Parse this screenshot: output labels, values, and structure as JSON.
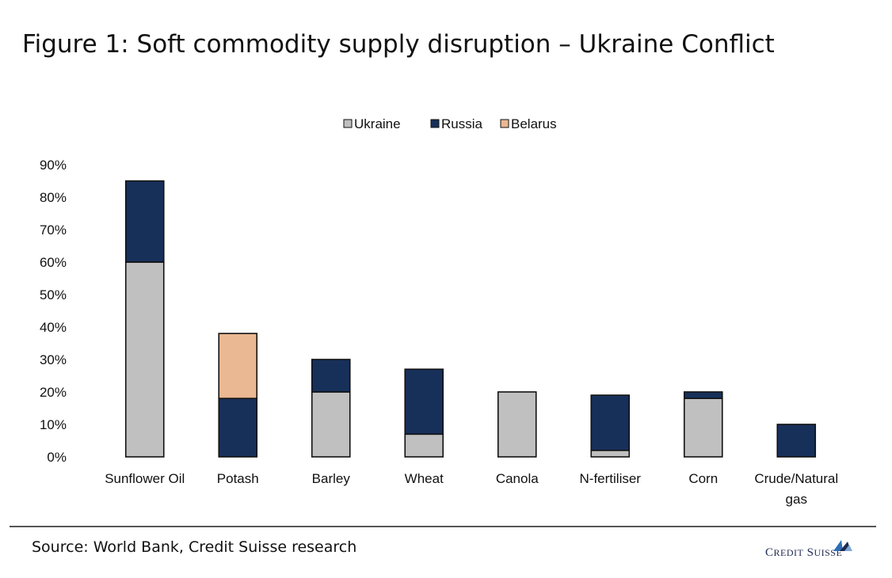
{
  "title": "Figure 1: Soft commodity supply disruption – Ukraine Conflict",
  "source": "Source: World Bank, Credit Suisse research",
  "logo_text": "Credit Suisse",
  "chart_data": {
    "type": "bar",
    "stacked": true,
    "categories": [
      "Sunflower Oil",
      "Potash",
      "Barley",
      "Wheat",
      "Canola",
      "N-fertiliser",
      "Corn",
      "Crude/Natural gas"
    ],
    "category_lines": [
      [
        "Sunflower Oil"
      ],
      [
        "Potash"
      ],
      [
        "Barley"
      ],
      [
        "Wheat"
      ],
      [
        "Canola"
      ],
      [
        "N-fertiliser"
      ],
      [
        "Corn"
      ],
      [
        "Crude/Natural",
        "gas"
      ]
    ],
    "series": [
      {
        "name": "Ukraine",
        "color": "#c0c0c0",
        "values": [
          60,
          0,
          20,
          7,
          20,
          2,
          18,
          0
        ]
      },
      {
        "name": "Russia",
        "color": "#17305a",
        "values": [
          25,
          18,
          10,
          20,
          0,
          17,
          2,
          10
        ]
      },
      {
        "name": "Belarus",
        "color": "#eab892",
        "values": [
          0,
          20,
          0,
          0,
          0,
          0,
          0,
          0
        ]
      }
    ],
    "ylim": [
      0,
      90
    ],
    "yticks": [
      0,
      10,
      20,
      30,
      40,
      50,
      60,
      70,
      80,
      90
    ],
    "ytick_labels": [
      "0%",
      "10%",
      "20%",
      "30%",
      "40%",
      "50%",
      "60%",
      "70%",
      "80%",
      "90%"
    ],
    "xlabel": "",
    "ylabel": "",
    "legend_position": "top",
    "grid": false
  }
}
